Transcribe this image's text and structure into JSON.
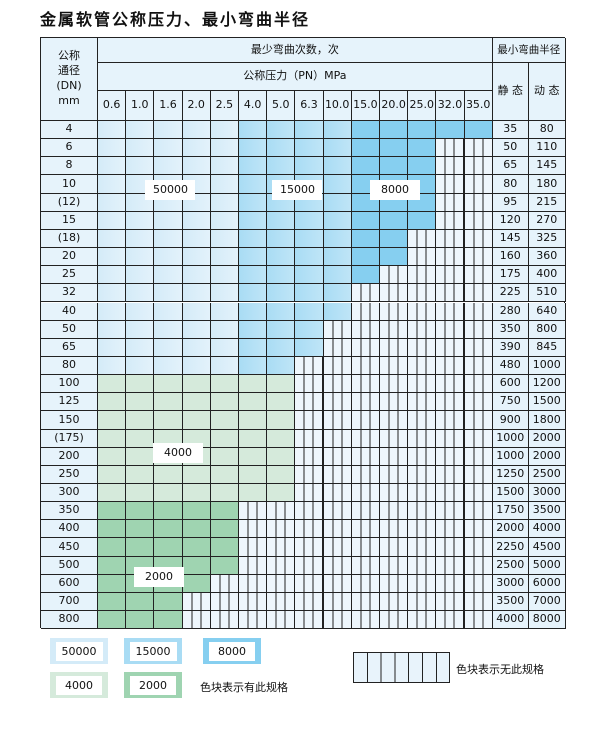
{
  "title": "金属软管公称压力、最小弯曲半径",
  "header": {
    "dn_label": "公称\n通径\n(DN)\nmm",
    "cycles_label": "最少弯曲次数，次",
    "pressure_label": "公称压力（PN）MPa",
    "radius_label": "最小弯曲半径",
    "static_label": "静 态",
    "dynamic_label": "动 态",
    "pressures": [
      "0.6",
      "1.0",
      "1.6",
      "2.0",
      "2.5",
      "4.0",
      "5.0",
      "6.3",
      "10.0",
      "15.0",
      "20.0",
      "25.0",
      "32.0",
      "35.0"
    ]
  },
  "rows": [
    {
      "dn": "4",
      "static": "35",
      "dynamic": "80",
      "cells": "AAAAABBBBCCCCC"
    },
    {
      "dn": "6",
      "static": "50",
      "dynamic": "110",
      "cells": "AAAAABBBBCCC--"
    },
    {
      "dn": "8",
      "static": "65",
      "dynamic": "145",
      "cells": "AAAAABBBBCCC--"
    },
    {
      "dn": "10",
      "static": "80",
      "dynamic": "180",
      "cells": "AAAAABBBBCCC--"
    },
    {
      "dn": "(12)",
      "static": "95",
      "dynamic": "215",
      "cells": "AAAAABBBBCCC--"
    },
    {
      "dn": "15",
      "static": "120",
      "dynamic": "270",
      "cells": "AAAAABBBBCCC--"
    },
    {
      "dn": "(18)",
      "static": "145",
      "dynamic": "325",
      "cells": "AAAAABBBBCC---"
    },
    {
      "dn": "20",
      "static": "160",
      "dynamic": "360",
      "cells": "AAAAABBBBCC---"
    },
    {
      "dn": "25",
      "static": "175",
      "dynamic": "400",
      "cells": "AAAAABBBBC----"
    },
    {
      "dn": "32",
      "static": "225",
      "dynamic": "510",
      "cells": "AAAAABBBB-----"
    },
    {
      "dn": "40",
      "static": "280",
      "dynamic": "640",
      "cells": "AAAAABBBB-----"
    },
    {
      "dn": "50",
      "static": "350",
      "dynamic": "800",
      "cells": "AAAAABBB------"
    },
    {
      "dn": "65",
      "static": "390",
      "dynamic": "845",
      "cells": "AAAAABBB------"
    },
    {
      "dn": "80",
      "static": "480",
      "dynamic": "1000",
      "cells": "AAAAABB-------"
    },
    {
      "dn": "100",
      "static": "600",
      "dynamic": "1200",
      "cells": "DDDDDDD-------"
    },
    {
      "dn": "125",
      "static": "750",
      "dynamic": "1500",
      "cells": "DDDDDDD-------"
    },
    {
      "dn": "150",
      "static": "900",
      "dynamic": "1800",
      "cells": "DDDDDDD-------"
    },
    {
      "dn": "(175)",
      "static": "1000",
      "dynamic": "2000",
      "cells": "DDDDDDD-------"
    },
    {
      "dn": "200",
      "static": "1000",
      "dynamic": "2000",
      "cells": "DDDDDDD-------"
    },
    {
      "dn": "250",
      "static": "1250",
      "dynamic": "2500",
      "cells": "DDDDDDD-------"
    },
    {
      "dn": "300",
      "static": "1500",
      "dynamic": "3000",
      "cells": "DDDDDDD-------"
    },
    {
      "dn": "350",
      "static": "1750",
      "dynamic": "3500",
      "cells": "EEEEE---------"
    },
    {
      "dn": "400",
      "static": "2000",
      "dynamic": "4000",
      "cells": "EEEEE---------"
    },
    {
      "dn": "450",
      "static": "2250",
      "dynamic": "4500",
      "cells": "EEEEE---------"
    },
    {
      "dn": "500",
      "static": "2500",
      "dynamic": "5000",
      "cells": "EEEEE---------"
    },
    {
      "dn": "600",
      "static": "3000",
      "dynamic": "6000",
      "cells": "EEEE----------"
    },
    {
      "dn": "700",
      "static": "3500",
      "dynamic": "7000",
      "cells": "EEE-----------"
    },
    {
      "dn": "800",
      "static": "4000",
      "dynamic": "8000",
      "cells": "EEE-----------"
    }
  ],
  "region_labels": {
    "A": "50000",
    "B": "15000",
    "C": "8000",
    "D": "4000",
    "E": "2000"
  },
  "colors": {
    "A": "#d4ebf8",
    "B": "#a9dcf4",
    "C": "#86cff0",
    "D": "#d5eadb",
    "E": "#9fd4b1",
    "none": "#eef6fc"
  },
  "legend": {
    "items": [
      "50000",
      "15000",
      "8000",
      "4000",
      "2000"
    ],
    "has_spec_note": "色块表示有此规格",
    "no_spec_note": "色块表示无此规格"
  }
}
